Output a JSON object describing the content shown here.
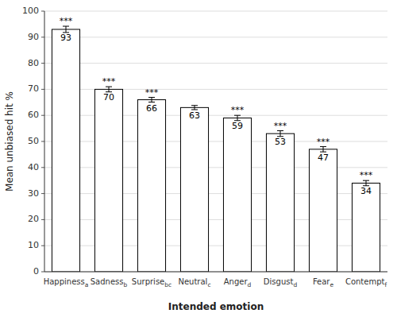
{
  "chart_data": {
    "type": "bar",
    "categories": [
      "Happiness",
      "Sadness",
      "Surprise",
      "Neutral",
      "Anger",
      "Disgust",
      "Fear",
      "Contempt"
    ],
    "subscripts": [
      "a",
      "b",
      "bc",
      "c",
      "d",
      "d",
      "e",
      "f"
    ],
    "values": [
      93,
      70,
      66,
      63,
      59,
      53,
      47,
      34
    ],
    "errors": [
      1.2,
      1.0,
      0.9,
      0.8,
      1.0,
      1.1,
      1.0,
      1.0
    ],
    "significance": [
      "***",
      "***",
      "***",
      null,
      "***",
      "***",
      "***",
      "***"
    ],
    "color": "#ffffff",
    "ylabel": "Mean unbiased hit %",
    "xlabel": "Intended emotion",
    "ylim": [
      0,
      100
    ],
    "yticks": [
      0,
      10,
      20,
      30,
      40,
      50,
      60,
      70,
      80,
      90,
      100
    ],
    "grid": true,
    "data_labels": true
  }
}
